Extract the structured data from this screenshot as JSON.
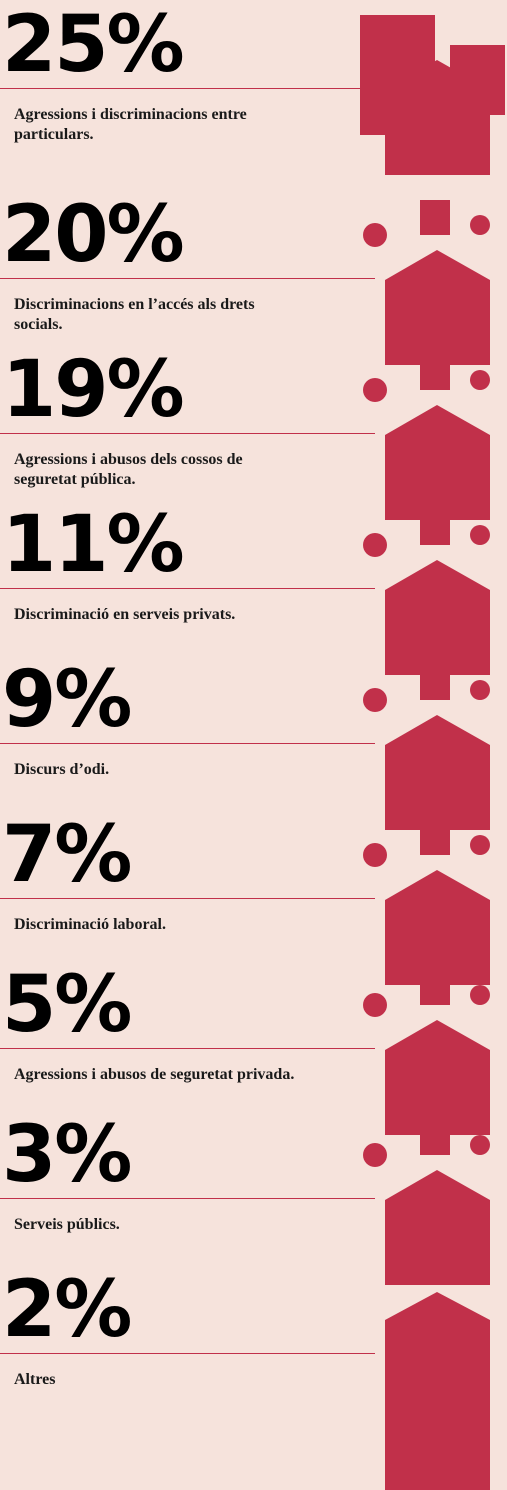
{
  "items": [
    {
      "percent": "25%",
      "label": "Agressions i discriminacions entre particulars."
    },
    {
      "percent": "20%",
      "label": "Discriminacions en l’accés als drets socials."
    },
    {
      "percent": "19%",
      "label": "Agressions i abusos dels cossos de seguretat pública."
    },
    {
      "percent": "11%",
      "label": "Discriminació en serveis privats."
    },
    {
      "percent": "9%",
      "label": "Discurs d’odi."
    },
    {
      "percent": "7%",
      "label": "Discriminació laboral."
    },
    {
      "percent": "5%",
      "label": "Agressions i abusos de seguretat privada."
    },
    {
      "percent": "3%",
      "label": "Serveis públics."
    },
    {
      "percent": "2%",
      "label": "Altres"
    }
  ]
}
